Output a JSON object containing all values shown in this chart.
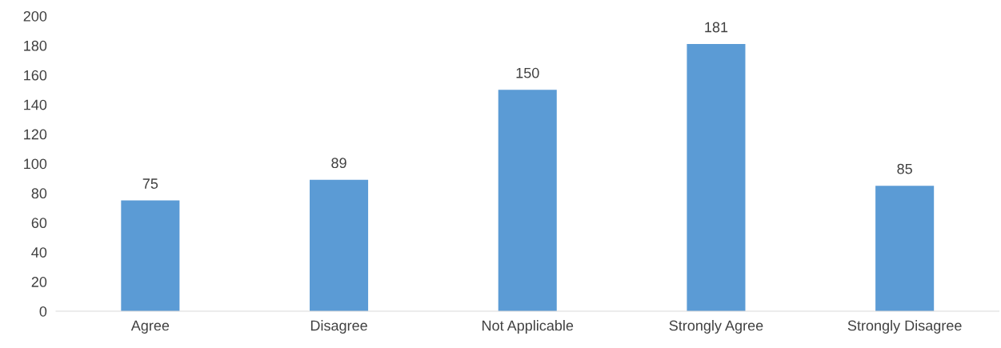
{
  "chart_data": {
    "type": "bar",
    "categories": [
      "Agree",
      "Disagree",
      "Not Applicable",
      "Strongly Agree",
      "Strongly Disagree"
    ],
    "values": [
      75,
      89,
      150,
      181,
      85
    ],
    "color": "#5b9bd5",
    "ylim": [
      0,
      200
    ],
    "yticks": [
      0,
      20,
      40,
      60,
      80,
      100,
      120,
      140,
      160,
      180,
      200
    ],
    "data_labels": true,
    "grid": false,
    "legend": false
  }
}
